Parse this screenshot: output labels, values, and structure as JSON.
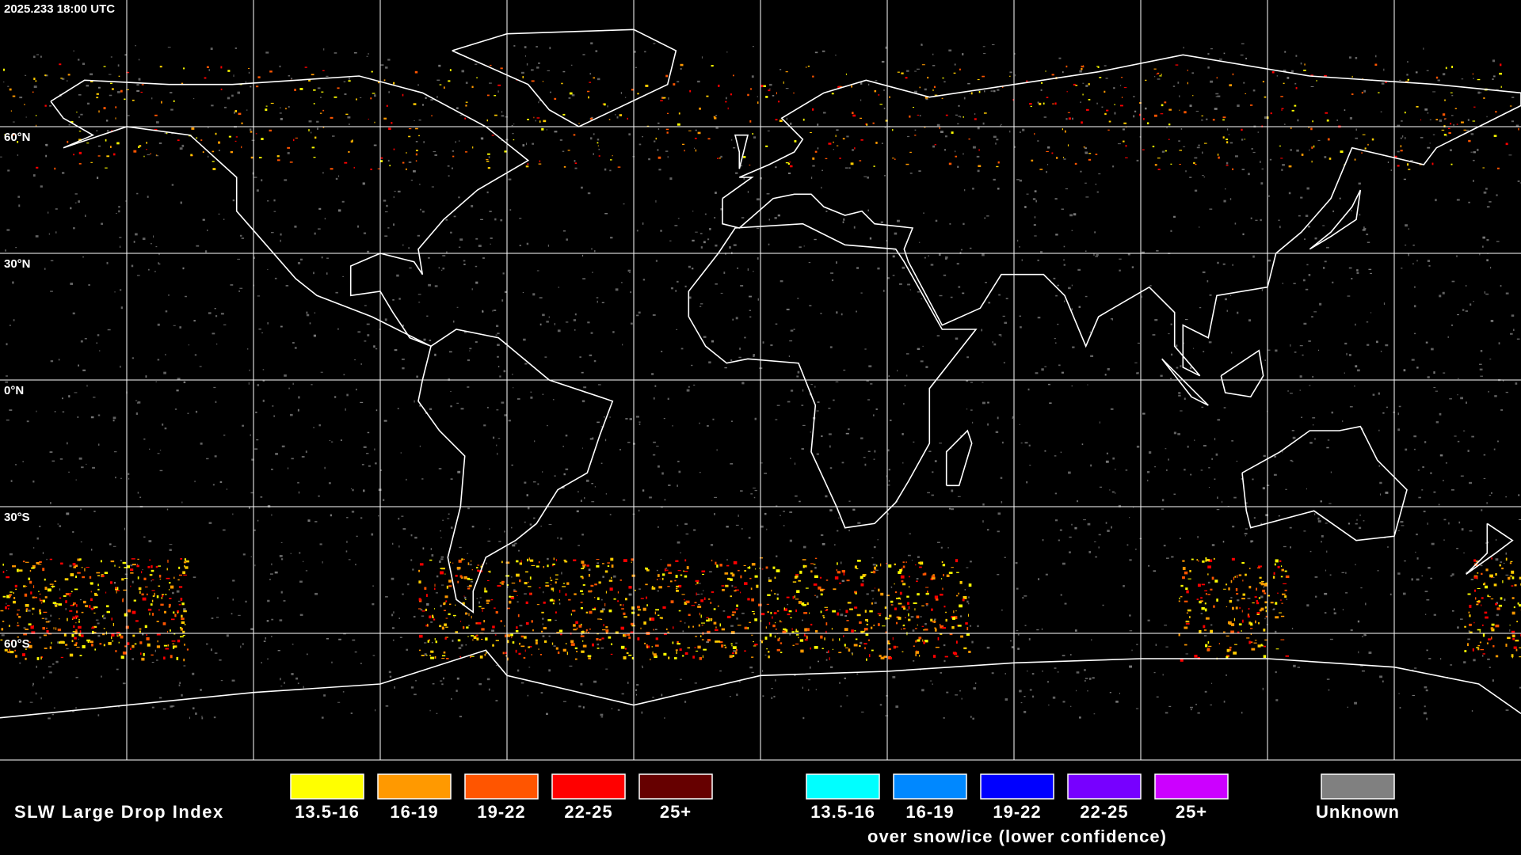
{
  "timestamp": "2025.233 18:00 UTC",
  "grid_labels": [
    "60°N",
    "30°N",
    "0°N",
    "30°S",
    "60°S"
  ],
  "legend": {
    "title": "SLW Large Drop Index",
    "groups": [
      {
        "items": [
          {
            "label": "13.5-16",
            "color": "#ffff00"
          },
          {
            "label": "16-19",
            "color": "#ff9900"
          },
          {
            "label": "19-22",
            "color": "#ff5500"
          },
          {
            "label": "22-25",
            "color": "#ff0000"
          },
          {
            "label": "25+",
            "color": "#660000"
          }
        ]
      },
      {
        "caption": "over snow/ice (lower confidence)",
        "items": [
          {
            "label": "13.5-16",
            "color": "#00ffff"
          },
          {
            "label": "16-19",
            "color": "#0088ff"
          },
          {
            "label": "19-22",
            "color": "#0000ff"
          },
          {
            "label": "22-25",
            "color": "#7700ff"
          },
          {
            "label": "25+",
            "color": "#cc00ff"
          }
        ]
      },
      {
        "items": [
          {
            "label": "Unknown",
            "color": "#808080"
          }
        ]
      }
    ]
  }
}
